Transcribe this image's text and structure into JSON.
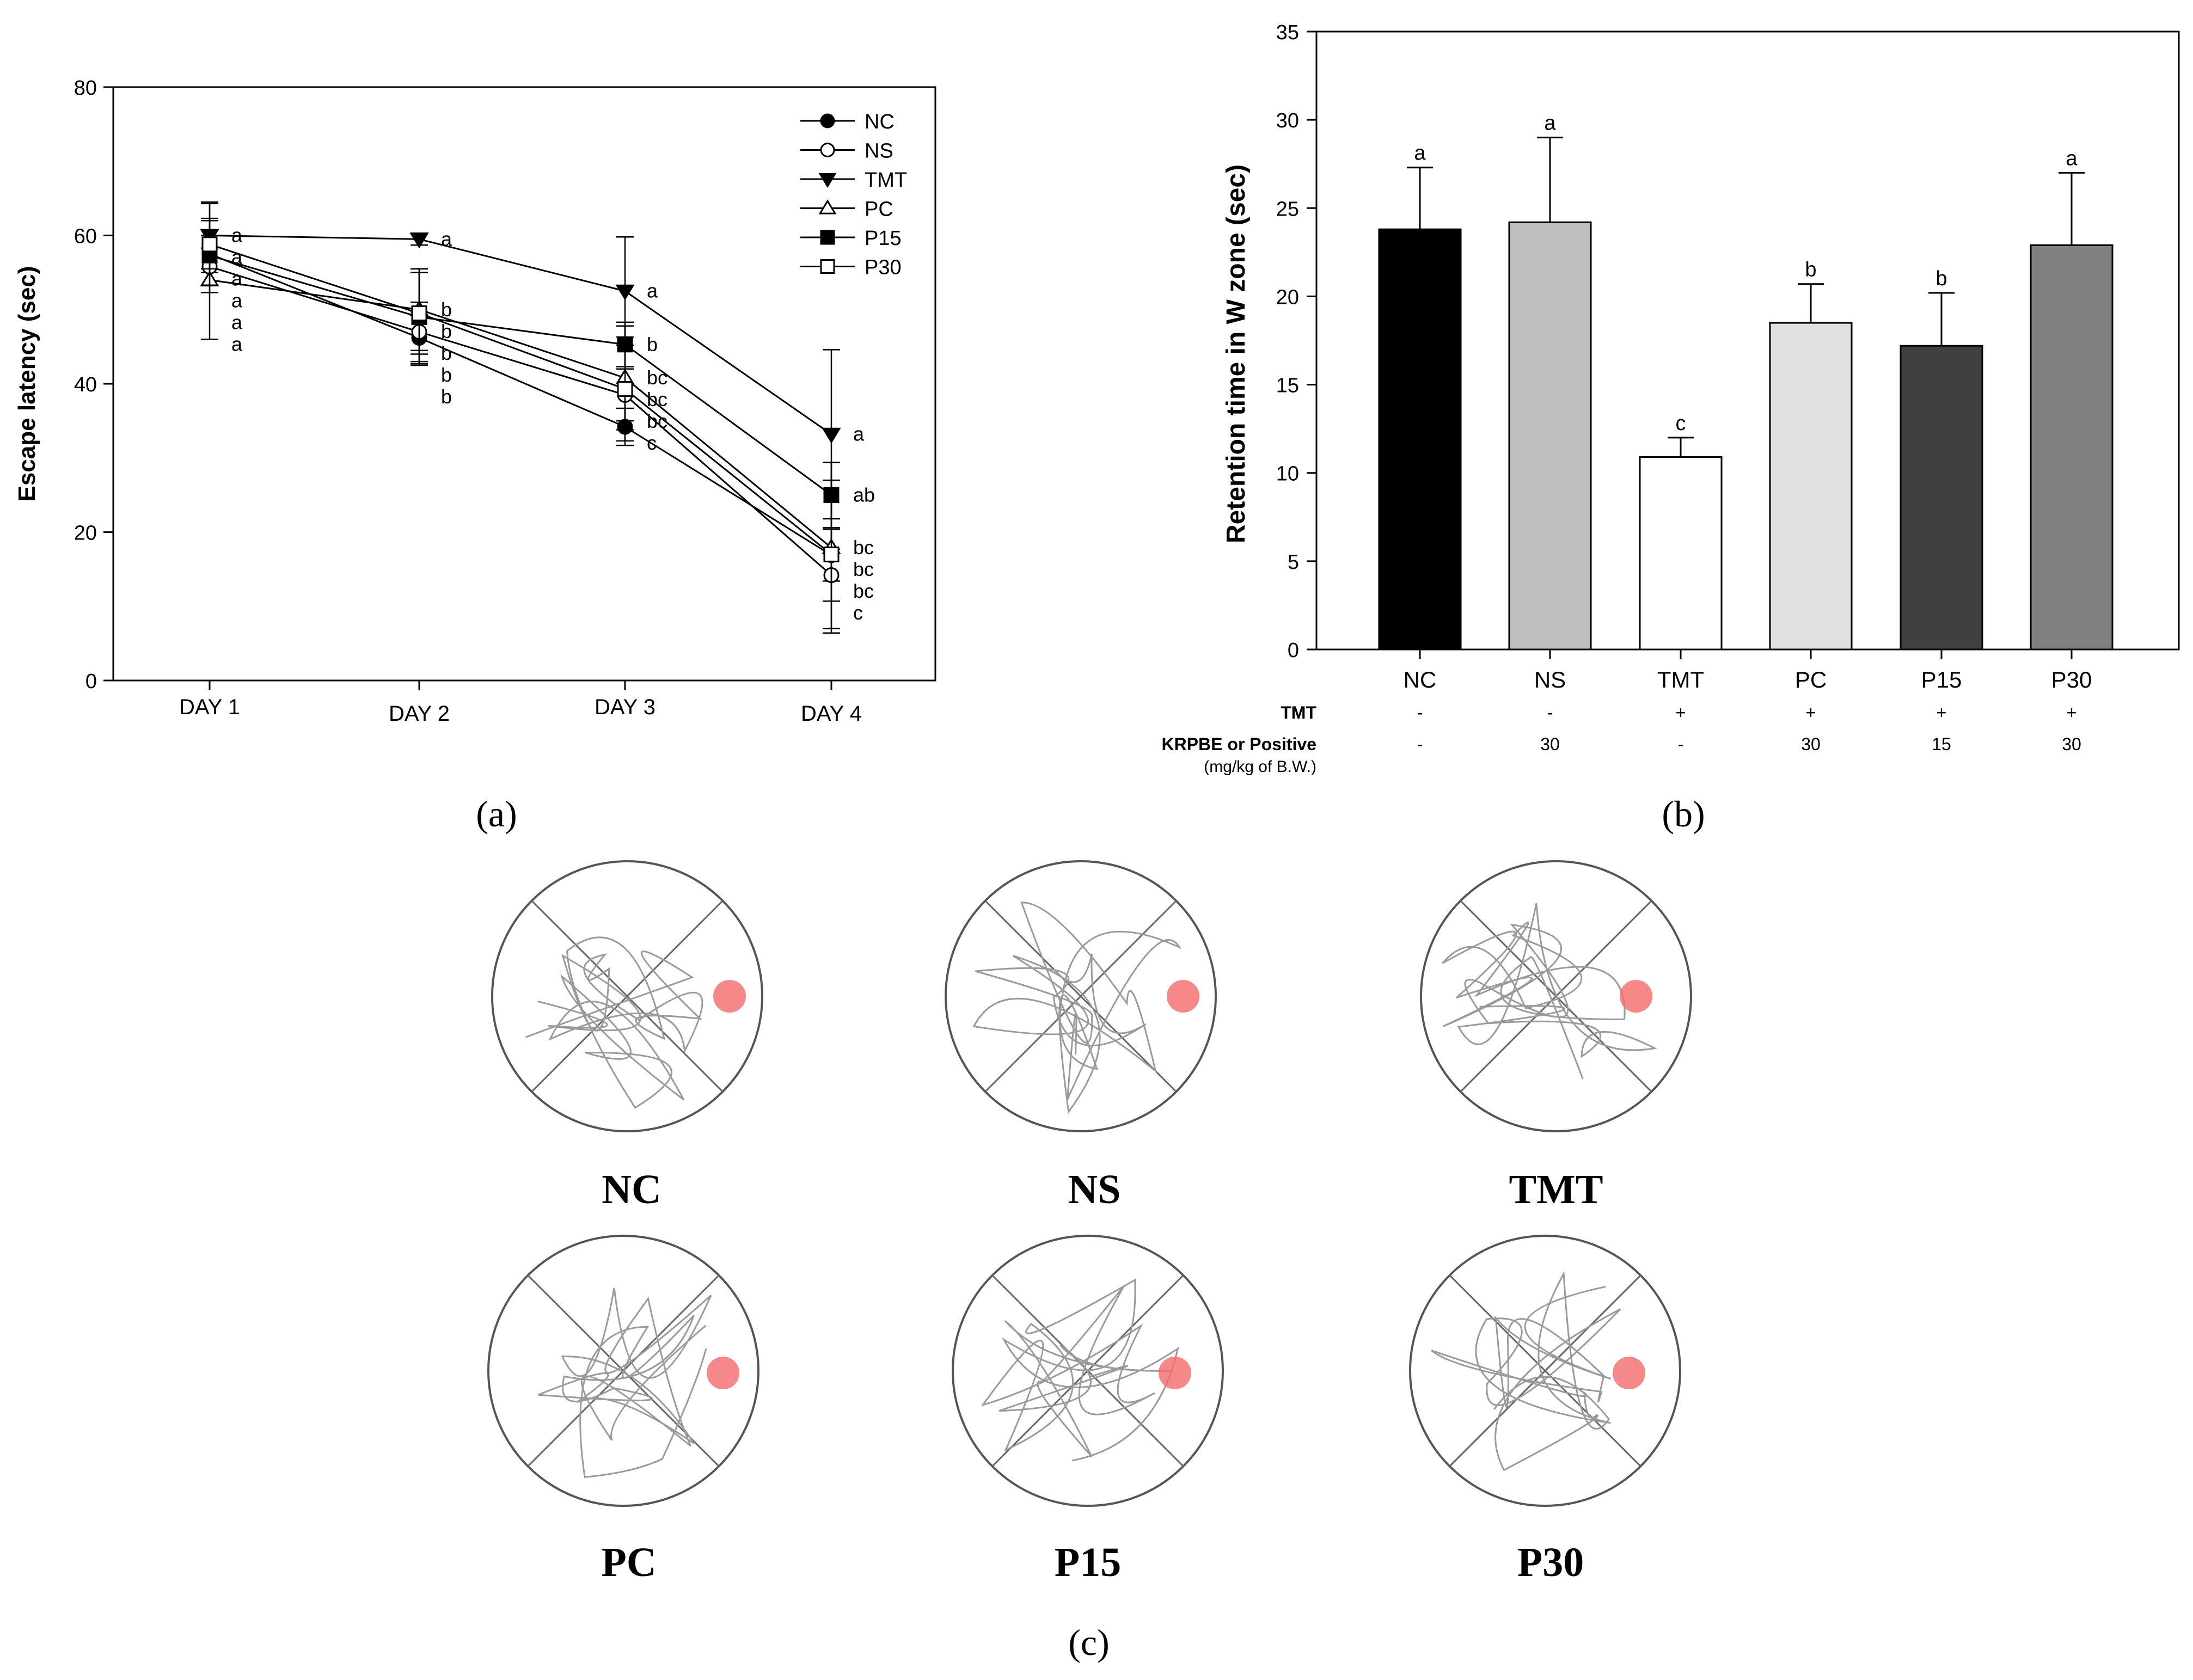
{
  "panel_labels": [
    "(a)",
    "(b)",
    "(c)"
  ],
  "chart_data": [
    {
      "type": "line",
      "panel": "(a)",
      "title": "",
      "xlabel": "",
      "ylabel": "Escape latency (sec)",
      "categories": [
        "DAY 1",
        "DAY 2",
        "DAY 3",
        "DAY 4"
      ],
      "ylim": [
        0,
        80
      ],
      "yticks": [
        0,
        20,
        40,
        60,
        80
      ],
      "grid": false,
      "legend": "top-right",
      "series": [
        {
          "name": "NC",
          "marker": "circle-filled",
          "values": [
            57.5,
            46.2,
            34.2,
            16.9
          ],
          "err": [
            2.5,
            3.5,
            2.5,
            3.5
          ],
          "letters": [
            "a",
            "b",
            "c",
            "bc"
          ]
        },
        {
          "name": "NS",
          "marker": "circle-open",
          "values": [
            55.8,
            47.0,
            38.5,
            14.2
          ],
          "err": [
            2.5,
            4.0,
            3.5,
            3.5
          ],
          "letters": [
            "a",
            "b",
            "bc",
            "c"
          ]
        },
        {
          "name": "TMT",
          "marker": "triangle-down",
          "values": [
            60.0,
            59.5,
            52.5,
            33.2
          ],
          "err": [
            4.5,
            0.8,
            7.3,
            11.4
          ],
          "letters": [
            "a",
            "a",
            "a",
            "a"
          ]
        },
        {
          "name": "PC",
          "marker": "triangle-up-open",
          "values": [
            54.0,
            50.0,
            40.8,
            17.9
          ],
          "err": [
            8.0,
            5.5,
            7.0,
            11.5
          ],
          "letters": [
            "a",
            "b",
            "bc",
            "bc"
          ]
        },
        {
          "name": "P15",
          "marker": "square-filled",
          "values": [
            57.3,
            49.0,
            45.3,
            25.0
          ],
          "err": [
            5.0,
            6.5,
            3.0,
            4.4
          ],
          "letters": [
            "a",
            "b",
            "b",
            "ab"
          ]
        },
        {
          "name": "P30",
          "marker": "square-open",
          "values": [
            58.8,
            49.5,
            39.3,
            17.0
          ],
          "err": [
            5.5,
            5.5,
            7.0,
            10.0
          ],
          "letters": [
            "a",
            "b",
            "bc",
            "bc"
          ]
        }
      ],
      "colors": {
        "line": "#000000"
      }
    },
    {
      "type": "bar",
      "panel": "(b)",
      "title": "",
      "xlabel": "",
      "ylabel": "Retention time in W zone (sec)",
      "categories": [
        "NC",
        "NS",
        "TMT",
        "PC",
        "P15",
        "P30"
      ],
      "values": [
        23.8,
        24.2,
        10.9,
        18.5,
        17.2,
        22.9
      ],
      "err": [
        3.5,
        4.8,
        1.1,
        2.2,
        3.0,
        4.1
      ],
      "letters": [
        "a",
        "a",
        "c",
        "b",
        "b",
        "a"
      ],
      "bar_colors": [
        "#000000",
        "#bebebe",
        "#ffffff",
        "#e0e0e0",
        "#404040",
        "#808080"
      ],
      "ylim": [
        0,
        35
      ],
      "yticks": [
        0,
        5,
        10,
        15,
        20,
        25,
        30,
        35
      ],
      "grid": false,
      "treatment_table": {
        "rows": [
          {
            "label": "TMT",
            "values": [
              "-",
              "-",
              "+",
              "+",
              "+",
              "+"
            ]
          },
          {
            "label": "KRPBE or Positive",
            "sublabel": "(mg/kg of B.W.)",
            "values": [
              "-",
              "30",
              "-",
              "30",
              "15",
              "30"
            ]
          }
        ]
      }
    }
  ],
  "track_panels": {
    "panel": "(c)",
    "labels": [
      "NC",
      "NS",
      "TMT",
      "PC",
      "P15",
      "P30"
    ],
    "colors": {
      "circle": "#555555",
      "track": "#9a9a9a",
      "platform": "#f26a6a"
    }
  }
}
